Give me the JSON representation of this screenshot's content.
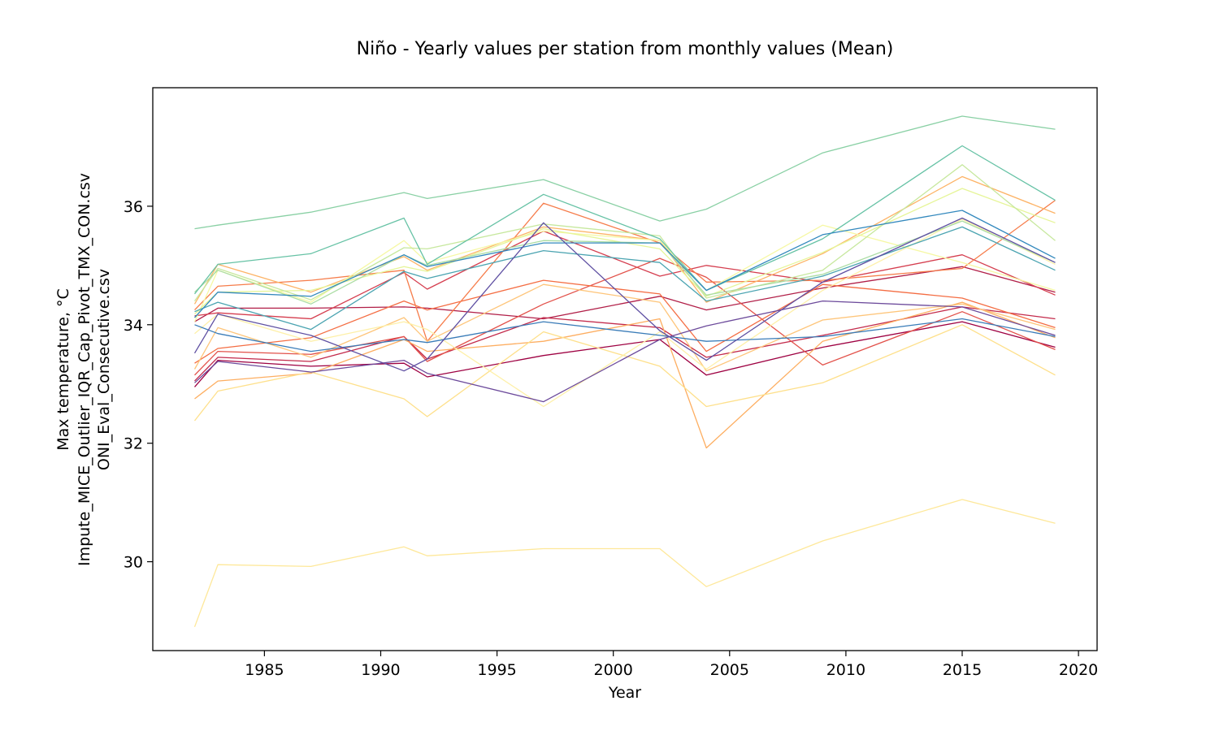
{
  "chart_data": {
    "type": "line",
    "title": "Niño - Yearly values per station from monthly values (Mean)",
    "xlabel": "Year",
    "ylabel_lines": [
      "Max temperature, °C",
      "Impute_MICE_Outlier_IQR_Cap_Pivot_TMX_CON.csv",
      "ONI_Eval_Consecutive.csv"
    ],
    "xlim": [
      1980.2,
      2020.8
    ],
    "ylim": [
      28.5,
      38.0
    ],
    "x_ticks": [
      1985,
      1990,
      1995,
      2000,
      2005,
      2010,
      2015,
      2020
    ],
    "y_ticks": [
      30,
      32,
      34,
      36
    ],
    "grid": false,
    "legend": "none",
    "years": [
      1982,
      1983,
      1987,
      1991,
      1992,
      1997,
      2002,
      2004,
      2009,
      2015,
      2019
    ],
    "series": [
      {
        "color": "#9e0142",
        "values": [
          32.95,
          33.4,
          33.3,
          33.35,
          33.12,
          33.48,
          33.75,
          33.15,
          33.62,
          34.05,
          33.62
        ]
      },
      {
        "color": "#b11f48",
        "values": [
          34.05,
          34.28,
          34.28,
          34.3,
          34.28,
          34.1,
          34.48,
          34.25,
          34.62,
          34.98,
          34.55
        ]
      },
      {
        "color": "#c32a4b",
        "values": [
          33.05,
          33.45,
          33.38,
          33.8,
          33.42,
          34.12,
          33.95,
          33.45,
          33.82,
          34.3,
          34.1
        ]
      },
      {
        "color": "#d53e4f",
        "values": [
          34.15,
          34.2,
          34.1,
          34.88,
          34.6,
          35.58,
          34.82,
          35.0,
          34.72,
          35.18,
          34.5
        ]
      },
      {
        "color": "#e2514a",
        "values": [
          33.15,
          33.55,
          33.5,
          33.8,
          33.38,
          34.35,
          35.12,
          34.8,
          33.32,
          34.22,
          33.58
        ]
      },
      {
        "color": "#f46d43",
        "values": [
          33.35,
          33.6,
          33.78,
          34.4,
          34.25,
          34.75,
          34.52,
          33.55,
          34.68,
          34.45,
          33.95
        ]
      },
      {
        "color": "#f67c4a",
        "values": [
          34.25,
          34.65,
          34.75,
          34.92,
          33.72,
          36.05,
          35.38,
          34.72,
          34.75,
          34.95,
          36.1
        ]
      },
      {
        "color": "#fdae61",
        "values": [
          32.75,
          33.05,
          33.18,
          33.75,
          33.55,
          33.72,
          34.1,
          31.92,
          33.72,
          34.38,
          33.78
        ]
      },
      {
        "color": "#fdb366",
        "values": [
          34.35,
          35.02,
          34.55,
          35.15,
          34.92,
          35.65,
          35.42,
          34.38,
          35.2,
          36.5,
          35.88
        ]
      },
      {
        "color": "#fec57a",
        "values": [
          33.25,
          33.95,
          33.45,
          34.12,
          33.72,
          34.68,
          34.38,
          33.22,
          34.08,
          34.35,
          33.92
        ]
      },
      {
        "color": "#fee08b",
        "values": [
          32.38,
          32.88,
          33.2,
          32.75,
          32.45,
          33.88,
          33.3,
          32.62,
          33.02,
          34.0,
          33.15
        ]
      },
      {
        "color": "#fee89a",
        "values": [
          28.9,
          29.95,
          29.92,
          30.25,
          30.1,
          30.22,
          30.22,
          29.58,
          30.35,
          31.05,
          30.65
        ]
      },
      {
        "color": "#fef0a8",
        "values": [
          33.85,
          34.18,
          33.72,
          34.05,
          33.92,
          32.62,
          33.88,
          33.25,
          34.58,
          35.78,
          35.02
        ]
      },
      {
        "color": "#f6f8a4",
        "values": [
          34.05,
          34.92,
          34.38,
          35.42,
          35.05,
          35.58,
          35.42,
          34.58,
          35.68,
          35.05,
          34.58
        ]
      },
      {
        "color": "#e6f598",
        "values": [
          34.18,
          34.55,
          34.58,
          34.98,
          34.9,
          35.62,
          35.28,
          34.48,
          35.22,
          36.3,
          35.72
        ]
      },
      {
        "color": "#c7e89e",
        "values": [
          34.4,
          34.95,
          34.42,
          35.3,
          35.28,
          35.7,
          35.5,
          34.45,
          34.92,
          36.7,
          35.42
        ]
      },
      {
        "color": "#abdda4",
        "values": [
          34.55,
          34.92,
          34.35,
          35.18,
          35.0,
          35.42,
          35.38,
          34.5,
          34.85,
          35.75,
          35.05
        ]
      },
      {
        "color": "#89d0a4",
        "values": [
          35.62,
          35.68,
          35.9,
          36.23,
          36.13,
          36.45,
          35.75,
          35.95,
          36.9,
          37.52,
          37.3
        ]
      },
      {
        "color": "#66c2a5",
        "values": [
          34.52,
          35.02,
          35.2,
          35.8,
          35.02,
          36.2,
          35.45,
          34.58,
          35.45,
          37.02,
          36.1
        ]
      },
      {
        "color": "#4ba4b1",
        "values": [
          34.22,
          34.38,
          33.92,
          34.9,
          34.78,
          35.25,
          35.05,
          34.4,
          34.82,
          35.65,
          34.92
        ]
      },
      {
        "color": "#3288bd",
        "values": [
          34.12,
          34.55,
          34.48,
          35.18,
          34.98,
          35.38,
          35.38,
          34.58,
          35.52,
          35.93,
          35.12
        ]
      },
      {
        "color": "#3a7cb8",
        "values": [
          34.0,
          33.85,
          33.55,
          33.75,
          33.7,
          34.05,
          33.82,
          33.72,
          33.8,
          34.1,
          33.8
        ]
      },
      {
        "color": "#5e4fa2",
        "values": [
          33.52,
          34.18,
          33.82,
          33.22,
          33.42,
          35.72,
          33.9,
          33.4,
          34.72,
          35.8,
          35.05
        ]
      },
      {
        "color": "#6c4a9b",
        "values": [
          33.02,
          33.38,
          33.2,
          33.4,
          33.18,
          32.7,
          33.75,
          33.98,
          34.4,
          34.3,
          33.82
        ]
      }
    ]
  }
}
